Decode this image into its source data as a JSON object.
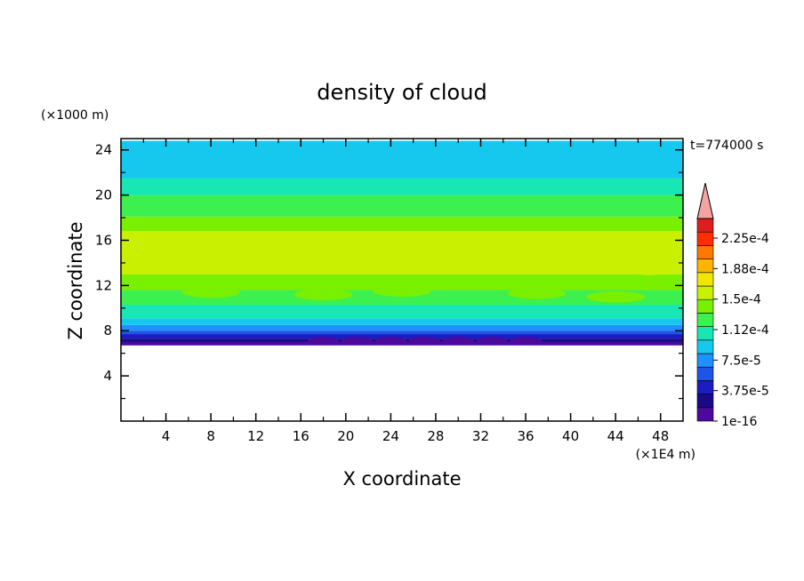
{
  "chart_data": {
    "type": "heatmap",
    "title": "density of cloud",
    "time_label": "t=774000 s",
    "xlabel": "X coordinate",
    "ylabel": "Z coordinate",
    "x_unit": "(×1E4 m)",
    "y_unit": "(×1000 m)",
    "xlim": [
      0,
      50
    ],
    "ylim": [
      0,
      25
    ],
    "x_ticks": [
      "4",
      "8",
      "12",
      "16",
      "20",
      "24",
      "28",
      "32",
      "36",
      "40",
      "44",
      "48"
    ],
    "y_ticks": [
      "4",
      "8",
      "12",
      "16",
      "20",
      "24"
    ],
    "cloud_base_z": 6.7,
    "colorbar": {
      "levels": [
        1e-16,
        1.875e-05,
        3.75e-05,
        5.625e-05,
        7.5e-05,
        9.375e-05,
        0.0001125,
        0.00013125,
        0.00015,
        0.00016875,
        0.0001875,
        0.00020625,
        0.000225,
        0.00024375
      ],
      "colors": [
        "#4b0a9c",
        "#1a0a8a",
        "#1c1cc0",
        "#1f55e6",
        "#1e90ff",
        "#17c8ee",
        "#18e6b4",
        "#3cf050",
        "#78f000",
        "#c8f000",
        "#f0e600",
        "#ffb400",
        "#ff7800",
        "#ff2d00",
        "#dc1e1e"
      ],
      "extend_color": "#f4a3a3",
      "tick_labels": [
        "2.25e-4",
        "1.88e-4",
        "1.5e-4",
        "1.12e-4",
        "7.5e-5",
        "3.75e-5",
        "1e-16"
      ]
    },
    "vertical_profile": [
      {
        "z_from": 6.7,
        "z_to": 7.0,
        "value": 1e-16
      },
      {
        "z_from": 7.0,
        "z_to": 7.3,
        "value": 2e-05
      },
      {
        "z_from": 7.3,
        "z_to": 7.7,
        "value": 3.8e-05
      },
      {
        "z_from": 7.7,
        "z_to": 8.0,
        "value": 5.8e-05
      },
      {
        "z_from": 8.0,
        "z_to": 8.5,
        "value": 7.6e-05
      },
      {
        "z_from": 8.5,
        "z_to": 9.1,
        "value": 9.5e-05
      },
      {
        "z_from": 9.1,
        "z_to": 10.3,
        "value": 0.000113
      },
      {
        "z_from": 10.3,
        "z_to": 11.6,
        "value": 0.000133
      },
      {
        "z_from": 11.6,
        "z_to": 13.0,
        "value": 0.000152
      },
      {
        "z_from": 13.0,
        "z_to": 16.8,
        "value": 0.00017
      },
      {
        "z_from": 16.8,
        "z_to": 18.1,
        "value": 0.000152
      },
      {
        "z_from": 18.1,
        "z_to": 20.0,
        "value": 0.000133
      },
      {
        "z_from": 20.0,
        "z_to": 21.5,
        "value": 0.000113
      },
      {
        "z_from": 21.5,
        "z_to": 24.8,
        "value": 9.5e-05
      }
    ]
  }
}
